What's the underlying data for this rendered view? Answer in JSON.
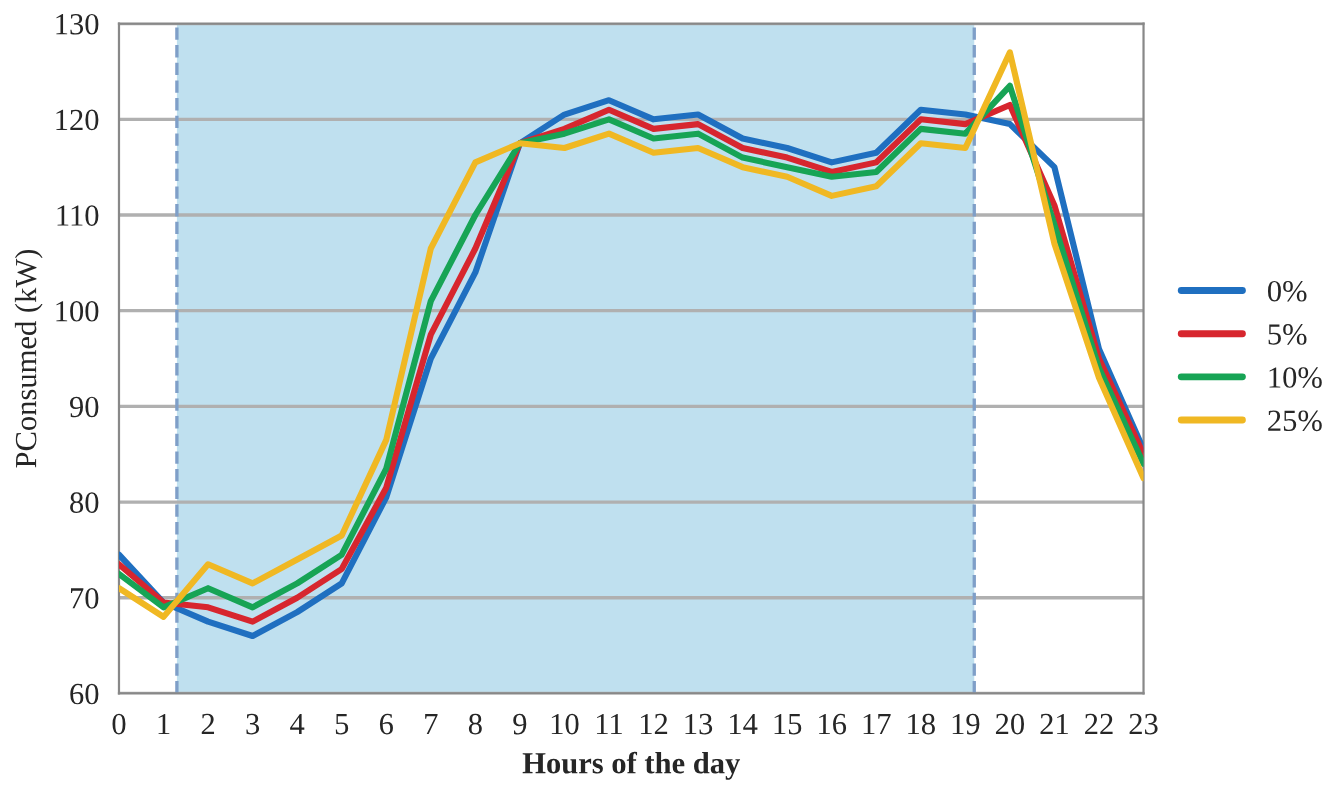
{
  "chart_data": {
    "type": "line",
    "xlabel": "Hours of the day",
    "ylabel": "PConsumed (kW)",
    "x": [
      0,
      1,
      2,
      3,
      4,
      5,
      6,
      7,
      8,
      9,
      10,
      11,
      12,
      13,
      14,
      15,
      16,
      17,
      18,
      19,
      20,
      21,
      22,
      23
    ],
    "xlim": [
      0,
      23
    ],
    "xticks": [
      0,
      1,
      2,
      3,
      4,
      5,
      6,
      7,
      8,
      9,
      10,
      11,
      12,
      13,
      14,
      15,
      16,
      17,
      18,
      19,
      20,
      21,
      22,
      23
    ],
    "ylim": [
      60,
      130
    ],
    "yticks": [
      60,
      70,
      80,
      90,
      100,
      110,
      120,
      130
    ],
    "grid": "y",
    "legend": "right",
    "marker": "none",
    "line_style": "solid",
    "bands": [
      {
        "axis": "x",
        "from": 1.3,
        "to": 19.2,
        "color": "#bfe0ef"
      }
    ],
    "ref_lines": [
      {
        "axis": "x",
        "value": 1.3,
        "color": "#7f9fc8",
        "line_style": "dashed"
      },
      {
        "axis": "x",
        "value": 19.2,
        "color": "#7f9fc8",
        "line_style": "dashed"
      }
    ],
    "series": [
      {
        "name": "0%",
        "color": "#1f6fc0",
        "values": [
          74.5,
          69.5,
          67.5,
          66,
          68.5,
          71.5,
          80.5,
          95,
          104,
          117.5,
          120.5,
          122,
          120,
          120.5,
          118,
          117,
          115.5,
          116.5,
          121,
          120.5,
          119.5,
          115,
          96,
          85.5
        ]
      },
      {
        "name": "5%",
        "color": "#d7262e",
        "values": [
          73.5,
          69.5,
          69,
          67.5,
          70,
          73,
          81.5,
          97.5,
          106.5,
          117.5,
          119,
          121,
          119,
          119.5,
          117,
          116,
          114.5,
          115.5,
          120,
          119.5,
          121.5,
          111,
          95,
          85
        ]
      },
      {
        "name": "10%",
        "color": "#17a455",
        "values": [
          72.5,
          69,
          71,
          69,
          71.5,
          74.5,
          83.5,
          101,
          110,
          117.5,
          118.5,
          120,
          118,
          118.5,
          116,
          115,
          114,
          114.5,
          119,
          118.5,
          123.5,
          109,
          94,
          84
        ]
      },
      {
        "name": "25%",
        "color": "#f0b823",
        "values": [
          71,
          68,
          73.5,
          71.5,
          74,
          76.5,
          86.5,
          106.5,
          115.5,
          117.5,
          117,
          118.5,
          116.5,
          117,
          115,
          114,
          112,
          113,
          117.5,
          117,
          127,
          107,
          93,
          82.5
        ]
      }
    ]
  }
}
